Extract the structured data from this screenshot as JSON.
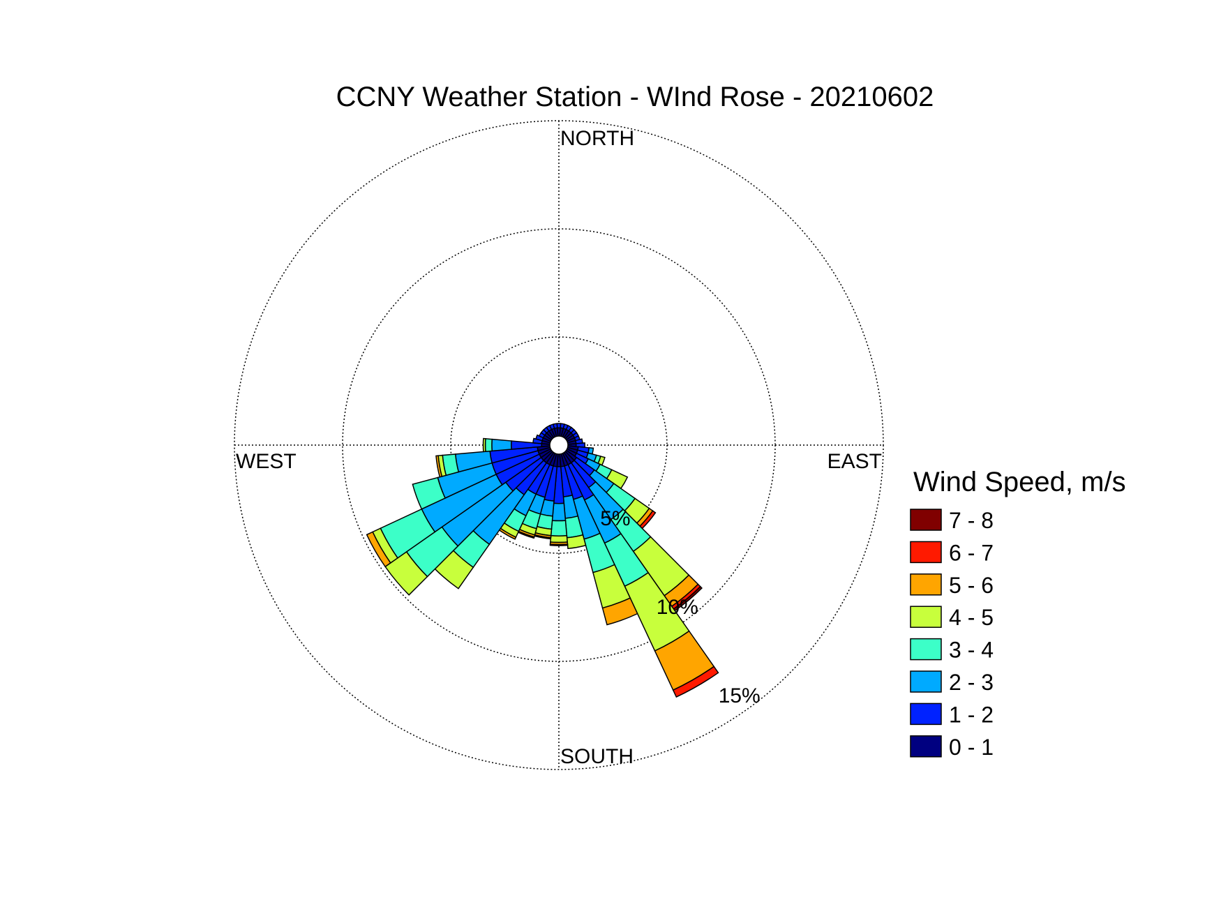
{
  "chart_data": {
    "type": "windrose",
    "title": "CCNY Weather Station - WInd Rose - 20210602",
    "directions": {
      "north": "NORTH",
      "south": "SOUTH",
      "east": "EAST",
      "west": "WEST"
    },
    "radial_unit": "%",
    "radial_max": 15,
    "rings": [
      {
        "value": 5,
        "label": "5%"
      },
      {
        "value": 10,
        "label": "10%"
      },
      {
        "value": 15,
        "label": "15%"
      }
    ],
    "legend": {
      "title": "Wind Speed, m/s",
      "placement": "right",
      "bins": [
        {
          "label": "7 - 8",
          "color": "#800000"
        },
        {
          "label": "6 - 7",
          "color": "#ff1a00"
        },
        {
          "label": "5 - 6",
          "color": "#ffa500"
        },
        {
          "label": "4 - 5",
          "color": "#c8ff3c"
        },
        {
          "label": "3 - 4",
          "color": "#3cffc8"
        },
        {
          "label": "2 - 3",
          "color": "#00aaff"
        },
        {
          "label": "1 - 2",
          "color": "#0022ff"
        },
        {
          "label": "0 - 1",
          "color": "#000080"
        }
      ]
    },
    "bin_order": [
      "0 - 1",
      "1 - 2",
      "2 - 3",
      "3 - 4",
      "4 - 5",
      "5 - 6",
      "6 - 7",
      "7 - 8"
    ],
    "sector_width_deg": 10,
    "sectors": [
      {
        "dir": 90,
        "values": [
          0.8,
          0.4,
          0,
          0,
          0,
          0,
          0,
          0
        ]
      },
      {
        "dir": 100,
        "values": [
          0.9,
          0.5,
          0.2,
          0,
          0,
          0,
          0,
          0
        ]
      },
      {
        "dir": 110,
        "values": [
          0.9,
          0.5,
          0.4,
          0.2,
          0.2,
          0,
          0,
          0
        ]
      },
      {
        "dir": 120,
        "values": [
          0.9,
          0.6,
          0.6,
          0.6,
          0.8,
          0,
          0,
          0
        ]
      },
      {
        "dir": 130,
        "values": [
          1.0,
          1.0,
          1.1,
          1.2,
          0.8,
          0.2,
          0.15,
          0
        ]
      },
      {
        "dir": 140,
        "values": [
          1.0,
          1.4,
          1.8,
          1.8,
          2.5,
          0.6,
          0.15,
          0.1
        ]
      },
      {
        "dir": 150,
        "values": [
          1.0,
          1.8,
          2.2,
          2.2,
          3.3,
          2.0,
          0.35,
          0
        ]
      },
      {
        "dir": 160,
        "values": [
          1.0,
          1.6,
          1.9,
          1.6,
          1.7,
          0.8,
          0,
          0
        ]
      },
      {
        "dir": 170,
        "values": [
          1.0,
          1.4,
          1.0,
          0.9,
          0.5,
          0,
          0,
          0
        ]
      },
      {
        "dir": 180,
        "values": [
          1.0,
          1.7,
          0.8,
          0.7,
          0.3,
          0.1,
          0.05,
          0
        ]
      },
      {
        "dir": 190,
        "values": [
          1.0,
          1.6,
          0.7,
          0.6,
          0.3,
          0.1,
          0.05,
          0
        ]
      },
      {
        "dir": 200,
        "values": [
          1.0,
          1.5,
          0.8,
          0.7,
          0.3,
          0.1,
          0.05,
          0
        ]
      },
      {
        "dir": 210,
        "values": [
          1.0,
          1.5,
          1.1,
          0.8,
          0.3,
          0.1,
          0,
          0
        ]
      },
      {
        "dir": 220,
        "values": [
          1.0,
          1.8,
          2.8,
          1.3,
          1.2,
          0,
          0,
          0
        ]
      },
      {
        "dir": 230,
        "values": [
          1.0,
          2.0,
          3.6,
          2.0,
          1.2,
          0,
          0,
          0
        ]
      },
      {
        "dir": 240,
        "values": [
          1.0,
          2.2,
          3.8,
          2.1,
          0.4,
          0.3,
          0,
          0
        ]
      },
      {
        "dir": 250,
        "values": [
          1.0,
          2.2,
          2.6,
          1.2,
          0,
          0,
          0,
          0
        ]
      },
      {
        "dir": 260,
        "values": [
          1.0,
          2.2,
          1.6,
          0.6,
          0.2,
          0.1,
          0,
          0
        ]
      },
      {
        "dir": 270,
        "values": [
          0.8,
          1.4,
          0.9,
          0.3,
          0.1,
          0,
          0,
          0
        ]
      },
      {
        "dir": 280,
        "values": [
          0.8,
          0.4,
          0,
          0,
          0,
          0,
          0,
          0
        ]
      },
      {
        "dir": 290,
        "values": [
          0.8,
          0.3,
          0,
          0,
          0,
          0,
          0,
          0
        ]
      },
      {
        "dir": 300,
        "values": [
          0.8,
          0.2,
          0,
          0,
          0,
          0,
          0,
          0
        ]
      },
      {
        "dir": 310,
        "values": [
          0.8,
          0.2,
          0,
          0,
          0,
          0,
          0,
          0
        ]
      },
      {
        "dir": 320,
        "values": [
          0.8,
          0.2,
          0,
          0,
          0,
          0,
          0,
          0
        ]
      },
      {
        "dir": 330,
        "values": [
          0.8,
          0.2,
          0,
          0,
          0,
          0,
          0,
          0
        ]
      },
      {
        "dir": 340,
        "values": [
          0.8,
          0.2,
          0,
          0,
          0,
          0,
          0,
          0
        ]
      },
      {
        "dir": 350,
        "values": [
          0.8,
          0.2,
          0,
          0,
          0,
          0,
          0,
          0
        ]
      },
      {
        "dir": 0,
        "values": [
          0.8,
          0.2,
          0,
          0,
          0,
          0,
          0,
          0
        ]
      },
      {
        "dir": 10,
        "values": [
          0.8,
          0.2,
          0,
          0,
          0,
          0,
          0,
          0
        ]
      },
      {
        "dir": 20,
        "values": [
          0.8,
          0.2,
          0,
          0,
          0,
          0,
          0,
          0
        ]
      },
      {
        "dir": 30,
        "values": [
          0.8,
          0.2,
          0,
          0,
          0,
          0,
          0,
          0
        ]
      },
      {
        "dir": 40,
        "values": [
          0.8,
          0.2,
          0,
          0,
          0,
          0,
          0,
          0
        ]
      },
      {
        "dir": 50,
        "values": [
          0.8,
          0.2,
          0,
          0,
          0,
          0,
          0,
          0
        ]
      },
      {
        "dir": 60,
        "values": [
          0.8,
          0.2,
          0,
          0,
          0,
          0,
          0,
          0
        ]
      },
      {
        "dir": 70,
        "values": [
          0.8,
          0.2,
          0,
          0,
          0,
          0,
          0,
          0
        ]
      },
      {
        "dir": 80,
        "values": [
          0.8,
          0.3,
          0,
          0,
          0,
          0,
          0,
          0
        ]
      }
    ]
  }
}
